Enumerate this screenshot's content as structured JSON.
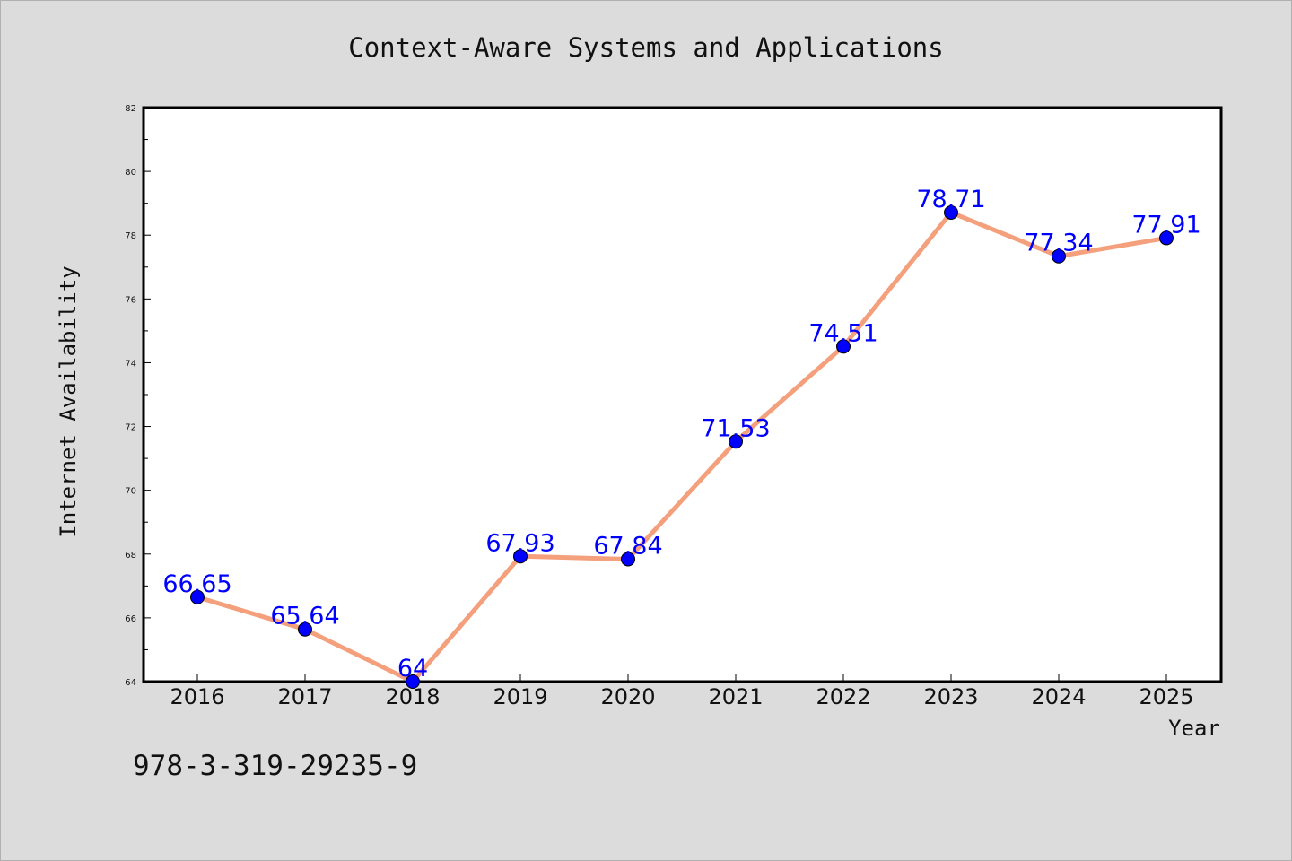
{
  "chart_data": {
    "type": "line",
    "title": "Context-Aware Systems and Applications",
    "xlabel": "Year",
    "ylabel": "Internet Availability",
    "categories": [
      "2016",
      "2017",
      "2018",
      "2019",
      "2020",
      "2021",
      "2022",
      "2023",
      "2024",
      "2025"
    ],
    "series": [
      {
        "values": [
          66.65,
          65.64,
          64,
          67.93,
          67.84,
          71.53,
          74.51,
          78.71,
          77.34,
          77.91
        ],
        "data_labels": [
          "66.65",
          "65.64",
          "64",
          "67.93",
          "67.84",
          "71.53",
          "74.51",
          "78.71",
          "77.34",
          "77.91"
        ],
        "line_color": "#f4a07c",
        "marker_color": "#0000ff"
      }
    ],
    "ylim": [
      64,
      82
    ],
    "yticks": [
      "64",
      "66",
      "68",
      "70",
      "72",
      "74",
      "76",
      "78",
      "80",
      "82"
    ],
    "grid": false,
    "legend": "none"
  },
  "footer": {
    "isbn": "978-3-319-29235-9"
  }
}
